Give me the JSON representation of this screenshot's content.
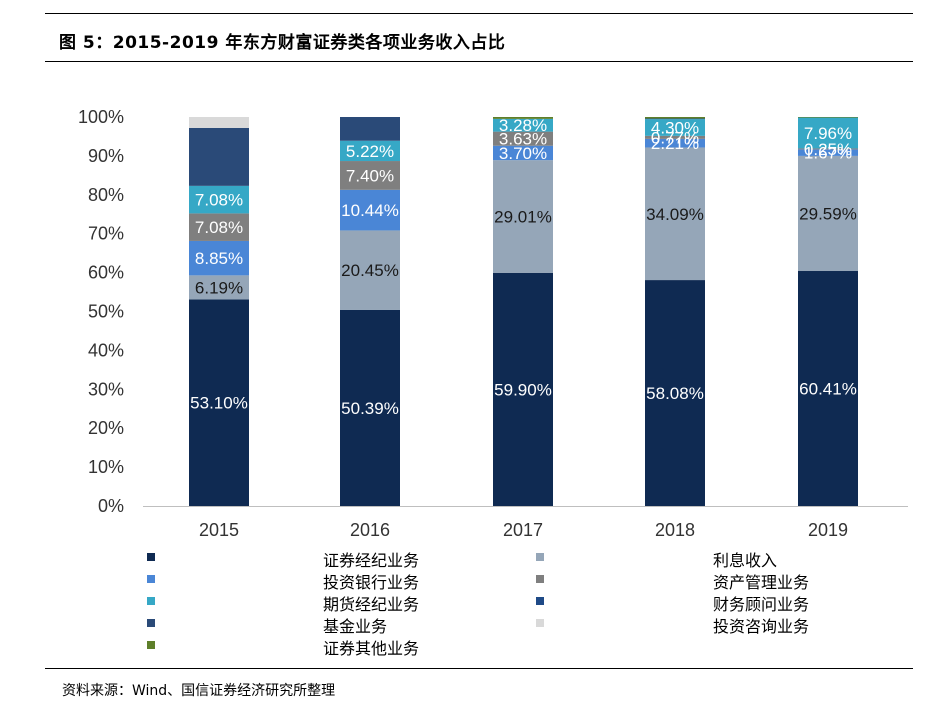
{
  "header": {
    "title": "图 5：2015-2019 年东方财富证券类各项业务收入占比"
  },
  "footer": {
    "source": "资料来源：Wind、国信证券经济研究所整理"
  },
  "chart_data": {
    "type": "bar",
    "stacked": true,
    "percent_stacked": true,
    "categories": [
      "2015",
      "2016",
      "2017",
      "2018",
      "2019"
    ],
    "ylim": [
      0,
      100
    ],
    "yticks": [
      "0%",
      "10%",
      "20%",
      "30%",
      "40%",
      "50%",
      "60%",
      "70%",
      "80%",
      "90%",
      "100%"
    ],
    "legend_position": "bottom",
    "series": [
      {
        "name": "证券经纪业务",
        "color": "#0f2a52",
        "values": [
          53.1,
          50.39,
          59.9,
          58.08,
          60.41
        ],
        "labels": [
          "53.10%",
          "50.39%",
          "59.90%",
          "58.08%",
          "60.41%"
        ],
        "label_color": "#ffffff"
      },
      {
        "name": "利息收入",
        "color": "#95a6b8",
        "values": [
          6.19,
          20.45,
          29.01,
          34.09,
          29.59
        ],
        "labels": [
          "6.19%",
          "20.45%",
          "29.01%",
          "34.09%",
          "29.59%"
        ],
        "label_color": "#1a1a1a"
      },
      {
        "name": "投资银行业务",
        "color": "#4a86d6",
        "values": [
          8.85,
          10.44,
          3.7,
          2.21,
          1.67
        ],
        "labels": [
          "8.85%",
          "10.44%",
          "3.70%",
          "2.21%",
          "1.67%"
        ],
        "label_color": "#ffffff"
      },
      {
        "name": "资产管理业务",
        "color": "#7f7f7f",
        "values": [
          7.08,
          7.4,
          3.63,
          0.77,
          0.25
        ],
        "labels": [
          "7.08%",
          "7.40%",
          "3.63%",
          "0.77%",
          "0.25%"
        ],
        "label_color": "#ffffff"
      },
      {
        "name": "期货经纪业务",
        "color": "#36a8c6",
        "values": [
          7.08,
          5.22,
          3.28,
          4.3,
          7.96
        ],
        "labels": [
          "7.08%",
          "5.22%",
          "3.28%",
          "4.30%",
          "7.96%"
        ],
        "label_color": "#ffffff"
      },
      {
        "name": "财务顾问业务",
        "color": "#1f4a87",
        "values": [
          0,
          0,
          0,
          0.15,
          0
        ],
        "labels": []
      },
      {
        "name": "基金业务",
        "color": "#2a4a78",
        "values": [
          14.9,
          6.1,
          0,
          0,
          0
        ],
        "labels": []
      },
      {
        "name": "投资咨询业务",
        "color": "#d9d9d9",
        "values": [
          2.8,
          0,
          0,
          0,
          0
        ],
        "labels": []
      },
      {
        "name": "证券其他业务",
        "color": "#5e7f2a",
        "values": [
          0,
          0,
          0.48,
          0.4,
          0.12
        ],
        "labels": []
      }
    ]
  }
}
